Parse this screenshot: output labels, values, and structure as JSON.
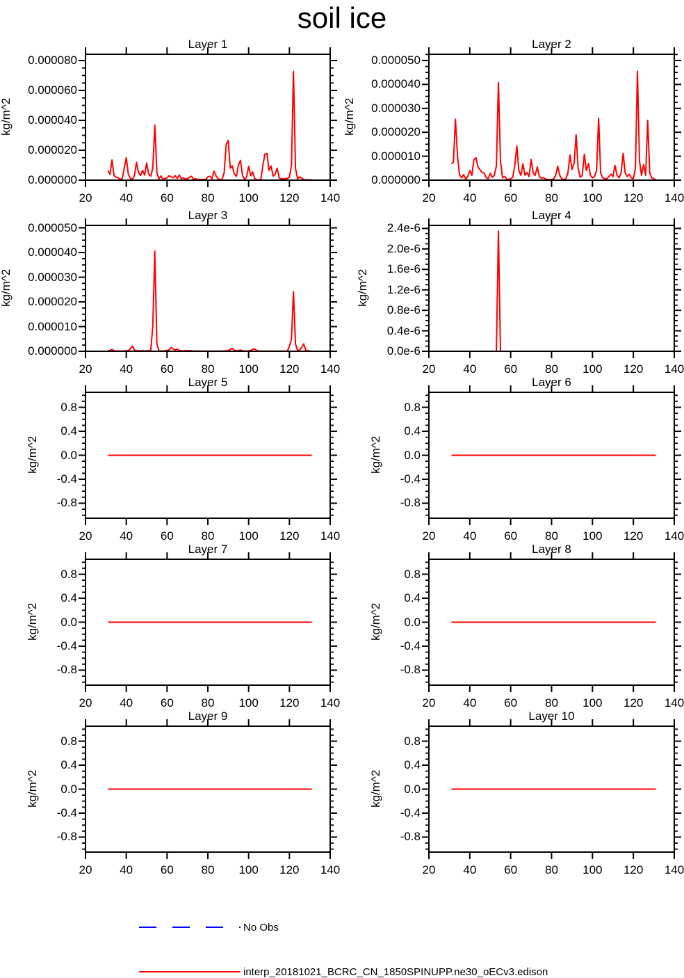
{
  "title": "soil ice",
  "series_color": "#ff0000",
  "axis_color": "#000000",
  "legend": {
    "entries": [
      {
        "label": "No Obs",
        "color": "#0000ff",
        "style": "dashed"
      },
      {
        "label": "interp_20181021_BCRC_CN_1850SPINUPP.ne30_oECv3.edison",
        "color": "#ff0000",
        "style": "solid"
      }
    ]
  },
  "chart_data": [
    {
      "type": "line",
      "title": "Layer 1",
      "ylabel": "kg/m^2",
      "xlim": [
        20,
        140
      ],
      "xticks": [
        20,
        40,
        60,
        80,
        100,
        120,
        140
      ],
      "xtick_labels": [
        "20",
        "40",
        "60",
        "80",
        "100",
        "120",
        "140"
      ],
      "ylim": [
        0,
        8.42e-05
      ],
      "ytick_values": [
        0,
        2e-05,
        4e-05,
        6e-05,
        8e-05
      ],
      "ytick_labels": [
        "0.000000",
        "0.000020",
        "0.000040",
        "0.000060",
        "0.000080"
      ],
      "y_minor_step": 5e-06,
      "x_start": 31,
      "x_step": 1,
      "value_scale": 1e-06,
      "values": [
        6.5,
        3.8,
        13.5,
        3,
        2,
        1.6,
        0.4,
        1.2,
        8,
        15,
        4,
        1.2,
        0.6,
        3,
        11.9,
        5,
        3.1,
        6.5,
        3.4,
        11.5,
        4,
        2.7,
        8,
        36.8,
        5,
        0.8,
        2.8,
        0.6,
        1.2,
        1.5,
        3,
        2.2,
        1.6,
        3,
        1.2,
        3.4,
        1,
        1.6,
        0.6,
        1,
        2,
        2.6,
        0.6,
        1,
        0.4,
        0.6,
        0.3,
        0.6,
        0.4,
        2.2,
        2.6,
        1,
        6,
        3,
        1,
        0.3,
        0.6,
        5,
        24,
        26.6,
        8,
        9.5,
        4,
        2.6,
        10,
        13.2,
        3,
        0.6,
        2,
        9.3,
        3,
        5.5,
        1,
        0.3,
        0.3,
        0.6,
        10,
        17.4,
        17.8,
        6.5,
        9.6,
        2.8,
        4,
        8,
        1.3,
        1,
        0.8,
        1,
        1.2,
        2,
        10,
        72.8,
        8,
        0.9,
        2.2,
        1.5,
        0.4,
        0.3,
        0.3,
        0.3,
        0.2
      ]
    },
    {
      "type": "line",
      "title": "Layer 2",
      "ylabel": "kg/m^2",
      "xlim": [
        20,
        140
      ],
      "xticks": [
        20,
        40,
        60,
        80,
        100,
        120,
        140
      ],
      "xtick_labels": [
        "20",
        "40",
        "60",
        "80",
        "100",
        "120",
        "140"
      ],
      "ylim": [
        0,
        5.26e-05
      ],
      "ytick_values": [
        0,
        1e-05,
        2e-05,
        3e-05,
        4e-05,
        5e-05
      ],
      "ytick_labels": [
        "0.000000",
        "0.000010",
        "0.000020",
        "0.000030",
        "0.000040",
        "0.000050"
      ],
      "y_minor_step": 2.5e-06,
      "x_start": 31,
      "x_step": 1,
      "value_scale": 1e-06,
      "values": [
        6.8,
        7.5,
        25.5,
        10,
        2.2,
        1,
        2.3,
        0.4,
        1.5,
        4,
        2,
        8.5,
        9.4,
        5.5,
        4.4,
        3.2,
        3,
        1,
        0.6,
        2.8,
        1.2,
        2,
        6,
        40.8,
        8,
        1,
        1.6,
        0.5,
        0.3,
        0.6,
        1.2,
        6,
        14.3,
        4,
        2,
        6.8,
        2,
        3.2,
        1.5,
        8.6,
        3,
        2,
        5.5,
        1.5,
        0.8,
        1,
        0.5,
        0.3,
        0.2,
        0.3,
        0.5,
        2,
        5.8,
        2,
        0.5,
        0.3,
        0.6,
        3,
        10.5,
        4.5,
        7,
        18.9,
        5,
        1.2,
        2,
        10.8,
        4,
        7,
        2,
        1,
        1.5,
        4,
        25.9,
        3,
        1,
        0.5,
        0.6,
        1.5,
        2.5,
        1.5,
        6.2,
        2,
        1,
        3,
        11.2,
        3,
        1.5,
        2.5,
        1,
        0.6,
        5,
        45.5,
        8,
        2,
        6.5,
        2,
        25,
        3,
        1,
        0.5,
        0.3
      ]
    },
    {
      "type": "line",
      "title": "Layer 3",
      "ylabel": "kg/m^2",
      "xlim": [
        20,
        140
      ],
      "xticks": [
        20,
        40,
        60,
        80,
        100,
        120,
        140
      ],
      "xtick_labels": [
        "20",
        "40",
        "60",
        "80",
        "100",
        "120",
        "140"
      ],
      "ylim": [
        0,
        5.1e-05
      ],
      "ytick_values": [
        0,
        1e-05,
        2e-05,
        3e-05,
        4e-05,
        5e-05
      ],
      "ytick_labels": [
        "0.000000",
        "0.000010",
        "0.000020",
        "0.000030",
        "0.000040",
        "0.000050"
      ],
      "y_minor_step": 2.5e-06,
      "x_start": 31,
      "x_step": 1,
      "value_scale": 1e-06,
      "values": [
        0.2,
        0.3,
        0.8,
        0.2,
        0.1,
        0.1,
        0.1,
        0.1,
        0.1,
        0.2,
        0.3,
        1,
        2.1,
        0.5,
        0.2,
        0.2,
        0.2,
        0.2,
        0.1,
        0.2,
        0.2,
        0.6,
        10,
        40.5,
        3,
        0.2,
        0.1,
        0.1,
        0.2,
        0.3,
        0.6,
        1.5,
        1,
        0.5,
        0.9,
        0.3,
        0.2,
        0.2,
        0.2,
        0.3,
        0.2,
        0.2,
        0.1,
        0.1,
        0.05,
        0.05,
        0.05,
        0.05,
        0.05,
        0.05,
        0.05,
        0.05,
        0.05,
        0.05,
        0.05,
        0.05,
        0.1,
        0.1,
        0.2,
        0.3,
        0.8,
        1.2,
        0.4,
        0.2,
        0.3,
        0.5,
        0.2,
        0.1,
        0.1,
        0.2,
        0.3,
        0.8,
        0.9,
        0.3,
        0.1,
        0.05,
        0.05,
        0.05,
        0.05,
        0.05,
        0.05,
        0.05,
        0.05,
        0.05,
        0.05,
        0.05,
        0.05,
        0.05,
        0.1,
        2,
        5,
        24.2,
        3,
        0.3,
        0.5,
        1.5,
        3,
        0.5,
        0.2,
        0.1,
        0.1
      ]
    },
    {
      "type": "line",
      "title": "Layer 4",
      "ylabel": "kg/m^2",
      "xlim": [
        20,
        140
      ],
      "xticks": [
        20,
        40,
        60,
        80,
        100,
        120,
        140
      ],
      "xtick_labels": [
        "20",
        "40",
        "60",
        "80",
        "100",
        "120",
        "140"
      ],
      "ylim": [
        0,
        2.46e-06
      ],
      "ytick_values": [
        0,
        4e-07,
        8e-07,
        1.2e-06,
        1.6e-06,
        2e-06,
        2.4e-06
      ],
      "ytick_labels": [
        "0.0e-6",
        "0.4e-6",
        "0.8e-6",
        "1.2e-6",
        "1.6e-6",
        "2.0e-6",
        "2.4e-6"
      ],
      "y_minor_step": 1e-07,
      "x_points": [
        31,
        53,
        54,
        55,
        131
      ],
      "value_scale": 1e-06,
      "values": [
        0,
        0,
        2.35,
        0,
        0
      ]
    },
    {
      "type": "line",
      "title": "Layer 5",
      "ylabel": "kg/m^2",
      "xlim": [
        20,
        140
      ],
      "xticks": [
        20,
        40,
        60,
        80,
        100,
        120,
        140
      ],
      "xtick_labels": [
        "20",
        "40",
        "60",
        "80",
        "100",
        "120",
        "140"
      ],
      "ylim": [
        -1.05,
        1.05
      ],
      "ytick_values": [
        -0.8,
        -0.4,
        0,
        0.4,
        0.8
      ],
      "ytick_labels": [
        "-0.8",
        "-0.4",
        "0.0",
        "0.4",
        "0.8"
      ],
      "y_minor_step": 0.1,
      "x_points": [
        31,
        131
      ],
      "value_scale": 1,
      "values": [
        0,
        0
      ]
    },
    {
      "type": "line",
      "title": "Layer 6",
      "ylabel": "kg/m^2",
      "xlim": [
        20,
        140
      ],
      "xticks": [
        20,
        40,
        60,
        80,
        100,
        120,
        140
      ],
      "xtick_labels": [
        "20",
        "40",
        "60",
        "80",
        "100",
        "120",
        "140"
      ],
      "ylim": [
        -1.05,
        1.05
      ],
      "ytick_values": [
        -0.8,
        -0.4,
        0,
        0.4,
        0.8
      ],
      "ytick_labels": [
        "-0.8",
        "-0.4",
        "0.0",
        "0.4",
        "0.8"
      ],
      "y_minor_step": 0.1,
      "x_points": [
        31,
        131
      ],
      "value_scale": 1,
      "values": [
        0,
        0
      ]
    },
    {
      "type": "line",
      "title": "Layer 7",
      "ylabel": "kg/m^2",
      "xlim": [
        20,
        140
      ],
      "xticks": [
        20,
        40,
        60,
        80,
        100,
        120,
        140
      ],
      "xtick_labels": [
        "20",
        "40",
        "60",
        "80",
        "100",
        "120",
        "140"
      ],
      "ylim": [
        -1.05,
        1.05
      ],
      "ytick_values": [
        -0.8,
        -0.4,
        0,
        0.4,
        0.8
      ],
      "ytick_labels": [
        "-0.8",
        "-0.4",
        "0.0",
        "0.4",
        "0.8"
      ],
      "y_minor_step": 0.1,
      "x_points": [
        31,
        131
      ],
      "value_scale": 1,
      "values": [
        0,
        0
      ]
    },
    {
      "type": "line",
      "title": "Layer 8",
      "ylabel": "kg/m^2",
      "xlim": [
        20,
        140
      ],
      "xticks": [
        20,
        40,
        60,
        80,
        100,
        120,
        140
      ],
      "xtick_labels": [
        "20",
        "40",
        "60",
        "80",
        "100",
        "120",
        "140"
      ],
      "ylim": [
        -1.05,
        1.05
      ],
      "ytick_values": [
        -0.8,
        -0.4,
        0,
        0.4,
        0.8
      ],
      "ytick_labels": [
        "-0.8",
        "-0.4",
        "0.0",
        "0.4",
        "0.8"
      ],
      "y_minor_step": 0.1,
      "x_points": [
        31,
        131
      ],
      "value_scale": 1,
      "values": [
        0,
        0
      ]
    },
    {
      "type": "line",
      "title": "Layer 9",
      "ylabel": "kg/m^2",
      "xlim": [
        20,
        140
      ],
      "xticks": [
        20,
        40,
        60,
        80,
        100,
        120,
        140
      ],
      "xtick_labels": [
        "20",
        "40",
        "60",
        "80",
        "100",
        "120",
        "140"
      ],
      "ylim": [
        -1.05,
        1.05
      ],
      "ytick_values": [
        -0.8,
        -0.4,
        0,
        0.4,
        0.8
      ],
      "ytick_labels": [
        "-0.8",
        "-0.4",
        "0.0",
        "0.4",
        "0.8"
      ],
      "y_minor_step": 0.1,
      "x_points": [
        31,
        131
      ],
      "value_scale": 1,
      "values": [
        0,
        0
      ]
    },
    {
      "type": "line",
      "title": "Layer 10",
      "ylabel": "kg/m^2",
      "xlim": [
        20,
        140
      ],
      "xticks": [
        20,
        40,
        60,
        80,
        100,
        120,
        140
      ],
      "xtick_labels": [
        "20",
        "40",
        "60",
        "80",
        "100",
        "120",
        "140"
      ],
      "ylim": [
        -1.05,
        1.05
      ],
      "ytick_values": [
        -0.8,
        -0.4,
        0,
        0.4,
        0.8
      ],
      "ytick_labels": [
        "-0.8",
        "-0.4",
        "0.0",
        "0.4",
        "0.8"
      ],
      "y_minor_step": 0.1,
      "x_points": [
        31,
        131
      ],
      "value_scale": 1,
      "values": [
        0,
        0
      ]
    }
  ]
}
